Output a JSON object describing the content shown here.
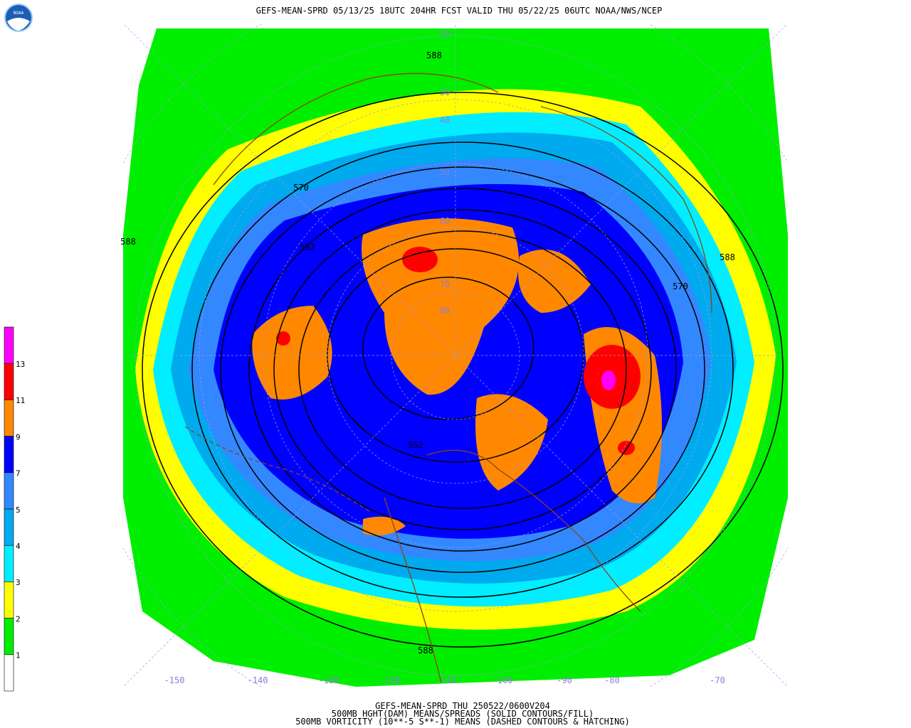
{
  "header": {
    "title": "GEFS-MEAN-SPRD 05/13/25 18UTC 204HR FCST VALID THU 05/22/25 06UTC NOAA/NWS/NCEP",
    "logo_text": "NOAA"
  },
  "map": {
    "contour_labels": [
      "588",
      "570",
      "552",
      "588",
      "588",
      "570",
      "552",
      "588"
    ],
    "latitude_labels": [
      "20",
      "30",
      "40",
      "50",
      "60",
      "70",
      "80"
    ],
    "longitude_labels": [
      "-150",
      "-140",
      "-130",
      "-120",
      "-110",
      "-100",
      "-90",
      "-80",
      "-70"
    ]
  },
  "legend": {
    "colors": [
      "#ff00ff",
      "#ff0000",
      "#ff8800",
      "#0000ff",
      "#3388ff",
      "#00aaee",
      "#00eeff",
      "#ffff00",
      "#00ee00",
      "#ffffff"
    ],
    "labels": [
      "13",
      "11",
      "9",
      "7",
      "5",
      "4",
      "3",
      "2",
      "1"
    ]
  },
  "footer": {
    "lines": [
      "GEFS-MEAN-SPRD THU 250522/0600V204",
      "500MB HGHT(DAM) MEANS/SPREADS (SOLID CONTOURS/FILL)",
      "500MB VORTICITY (10**-5 S**-1) MEANS (DASHED CONTOURS & HATCHING)"
    ]
  }
}
